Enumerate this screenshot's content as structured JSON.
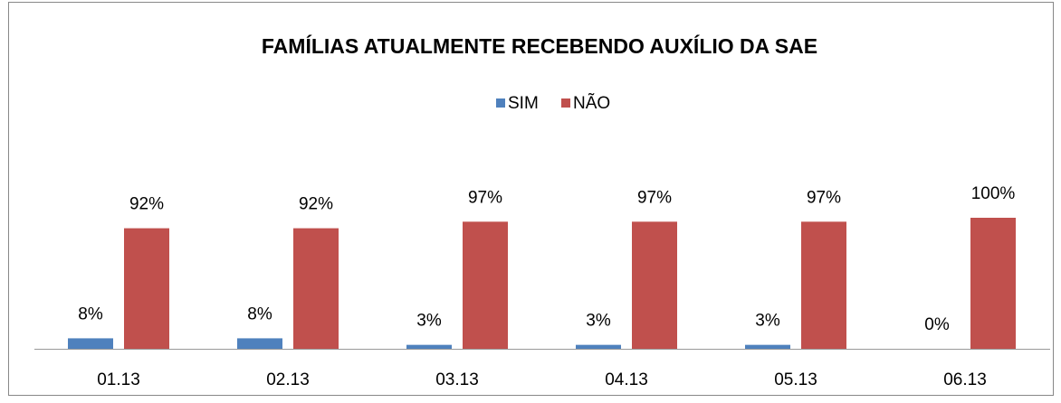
{
  "chart_data": {
    "type": "bar",
    "title": "FAMÍLIAS ATUALMENTE RECEBENDO AUXÍLIO DA SAE",
    "categories": [
      "01.13",
      "02.13",
      "03.13",
      "04.13",
      "05.13",
      "06.13"
    ],
    "series": [
      {
        "name": "SIM",
        "color": "#4f81bd",
        "values": [
          8,
          8,
          3,
          3,
          3,
          0
        ],
        "value_labels": [
          "8%",
          "8%",
          "3%",
          "3%",
          "3%",
          "0%"
        ]
      },
      {
        "name": "NÃO",
        "color": "#c0504d",
        "values": [
          92,
          92,
          97,
          97,
          97,
          100
        ],
        "value_labels": [
          "92%",
          "92%",
          "97%",
          "97%",
          "97%",
          "100%"
        ]
      }
    ]
  }
}
